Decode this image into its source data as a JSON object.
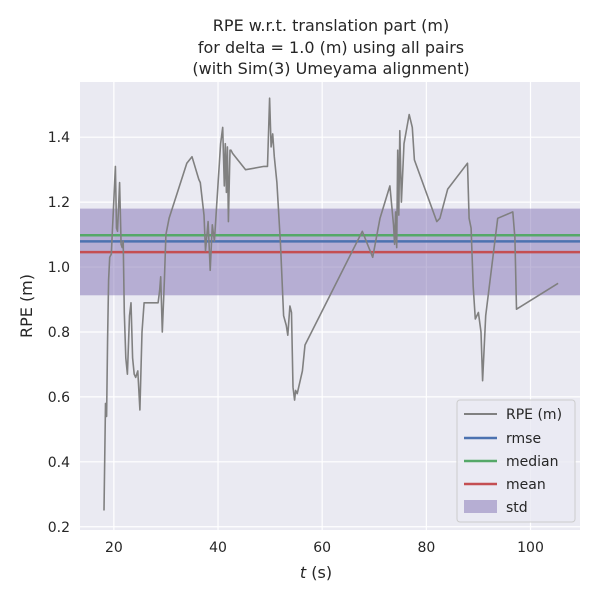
{
  "chart_data": {
    "type": "line",
    "title_lines": [
      "RPE w.r.t. translation part (m)",
      "for delta = 1.0 (m) using all pairs",
      "(with Sim(3) Umeyama alignment)"
    ],
    "xlabel": {
      "italic": "t",
      "rest": " (s)"
    },
    "ylabel": "RPE (m)",
    "xlim": [
      13.5,
      109.5
    ],
    "ylim": [
      0.19,
      1.57
    ],
    "xticks": [
      20,
      40,
      60,
      80,
      100
    ],
    "xtick_labels": [
      "20",
      "40",
      "60",
      "80",
      "100"
    ],
    "yticks": [
      0.2,
      0.4,
      0.6,
      0.8,
      1.0,
      1.2,
      1.4
    ],
    "ytick_labels": [
      "0.2",
      "0.4",
      "0.6",
      "0.8",
      "1.0",
      "1.2",
      "1.4"
    ],
    "grid": true,
    "legend_position": "lower right",
    "background_color": "#eaeaf2",
    "series": [
      {
        "name": "RPE (m)",
        "color": "#808080",
        "x": [
          18.1,
          18.4,
          18.6,
          18.8,
          19.0,
          19.2,
          19.5,
          20.0,
          20.3,
          20.5,
          20.7,
          20.9,
          21.1,
          21.4,
          21.6,
          21.8,
          22.0,
          22.3,
          22.6,
          23.0,
          23.3,
          23.6,
          23.9,
          24.2,
          24.6,
          25.0,
          25.4,
          25.8,
          26.2,
          26.7,
          28.5,
          28.8,
          29.0,
          29.3,
          29.7,
          30.0,
          30.6,
          34.0,
          35.0,
          36.3,
          36.6,
          37.3,
          37.6,
          38.1,
          38.5,
          38.9,
          39.3,
          40.5,
          40.9,
          41.2,
          41.4,
          41.6,
          41.8,
          42.0,
          42.3,
          42.5,
          42.8,
          45.3,
          48.8,
          49.5,
          49.9,
          50.2,
          50.5,
          50.8,
          51.3,
          52.0,
          52.6,
          53.1,
          53.4,
          53.8,
          54.1,
          54.4,
          54.7,
          54.9,
          55.2,
          56.2,
          56.7,
          67.7,
          69.7,
          71.1,
          73.0,
          73.7,
          73.9,
          74.1,
          74.3,
          74.5,
          74.7,
          74.9,
          75.2,
          75.7,
          76.7,
          77.3,
          77.7,
          82.0,
          82.6,
          84.1,
          87.9,
          88.2,
          88.6,
          89.0,
          89.4,
          90.0,
          90.5,
          90.8,
          91.4,
          93.7,
          96.6,
          97.0,
          97.3,
          105.3
        ],
        "y": [
          0.25,
          0.58,
          0.54,
          0.78,
          0.96,
          1.03,
          1.04,
          1.21,
          1.31,
          1.12,
          1.11,
          1.18,
          1.26,
          1.07,
          1.06,
          1.08,
          0.86,
          0.72,
          0.67,
          0.85,
          0.89,
          0.72,
          0.67,
          0.66,
          0.68,
          0.56,
          0.8,
          0.89,
          0.89,
          0.89,
          0.89,
          0.93,
          0.97,
          0.8,
          0.96,
          1.1,
          1.15,
          1.32,
          1.34,
          1.27,
          1.26,
          1.16,
          1.05,
          1.14,
          0.99,
          1.13,
          1.08,
          1.38,
          1.43,
          1.25,
          1.38,
          1.23,
          1.37,
          1.14,
          1.36,
          1.36,
          1.35,
          1.3,
          1.31,
          1.31,
          1.52,
          1.37,
          1.41,
          1.34,
          1.26,
          1.07,
          0.85,
          0.82,
          0.79,
          0.88,
          0.86,
          0.63,
          0.59,
          0.62,
          0.61,
          0.68,
          0.76,
          1.11,
          1.03,
          1.15,
          1.25,
          1.13,
          1.07,
          1.17,
          1.06,
          1.36,
          1.16,
          1.42,
          1.2,
          1.38,
          1.47,
          1.43,
          1.33,
          1.14,
          1.15,
          1.24,
          1.32,
          1.15,
          1.12,
          0.94,
          0.84,
          0.86,
          0.8,
          0.65,
          0.85,
          1.15,
          1.17,
          1.09,
          0.87,
          0.95
        ]
      }
    ],
    "stats": {
      "rmse": {
        "name": "rmse",
        "value": 1.079,
        "color": "#4c72b0"
      },
      "median": {
        "name": "median",
        "value": 1.098,
        "color": "#55a868"
      },
      "mean": {
        "name": "mean",
        "value": 1.046,
        "color": "#c44e52"
      },
      "std": {
        "name": "std",
        "low": 0.913,
        "high": 1.18,
        "color": "#8172b3"
      }
    },
    "legend": [
      "RPE (m)",
      "rmse",
      "median",
      "mean",
      "std"
    ]
  }
}
